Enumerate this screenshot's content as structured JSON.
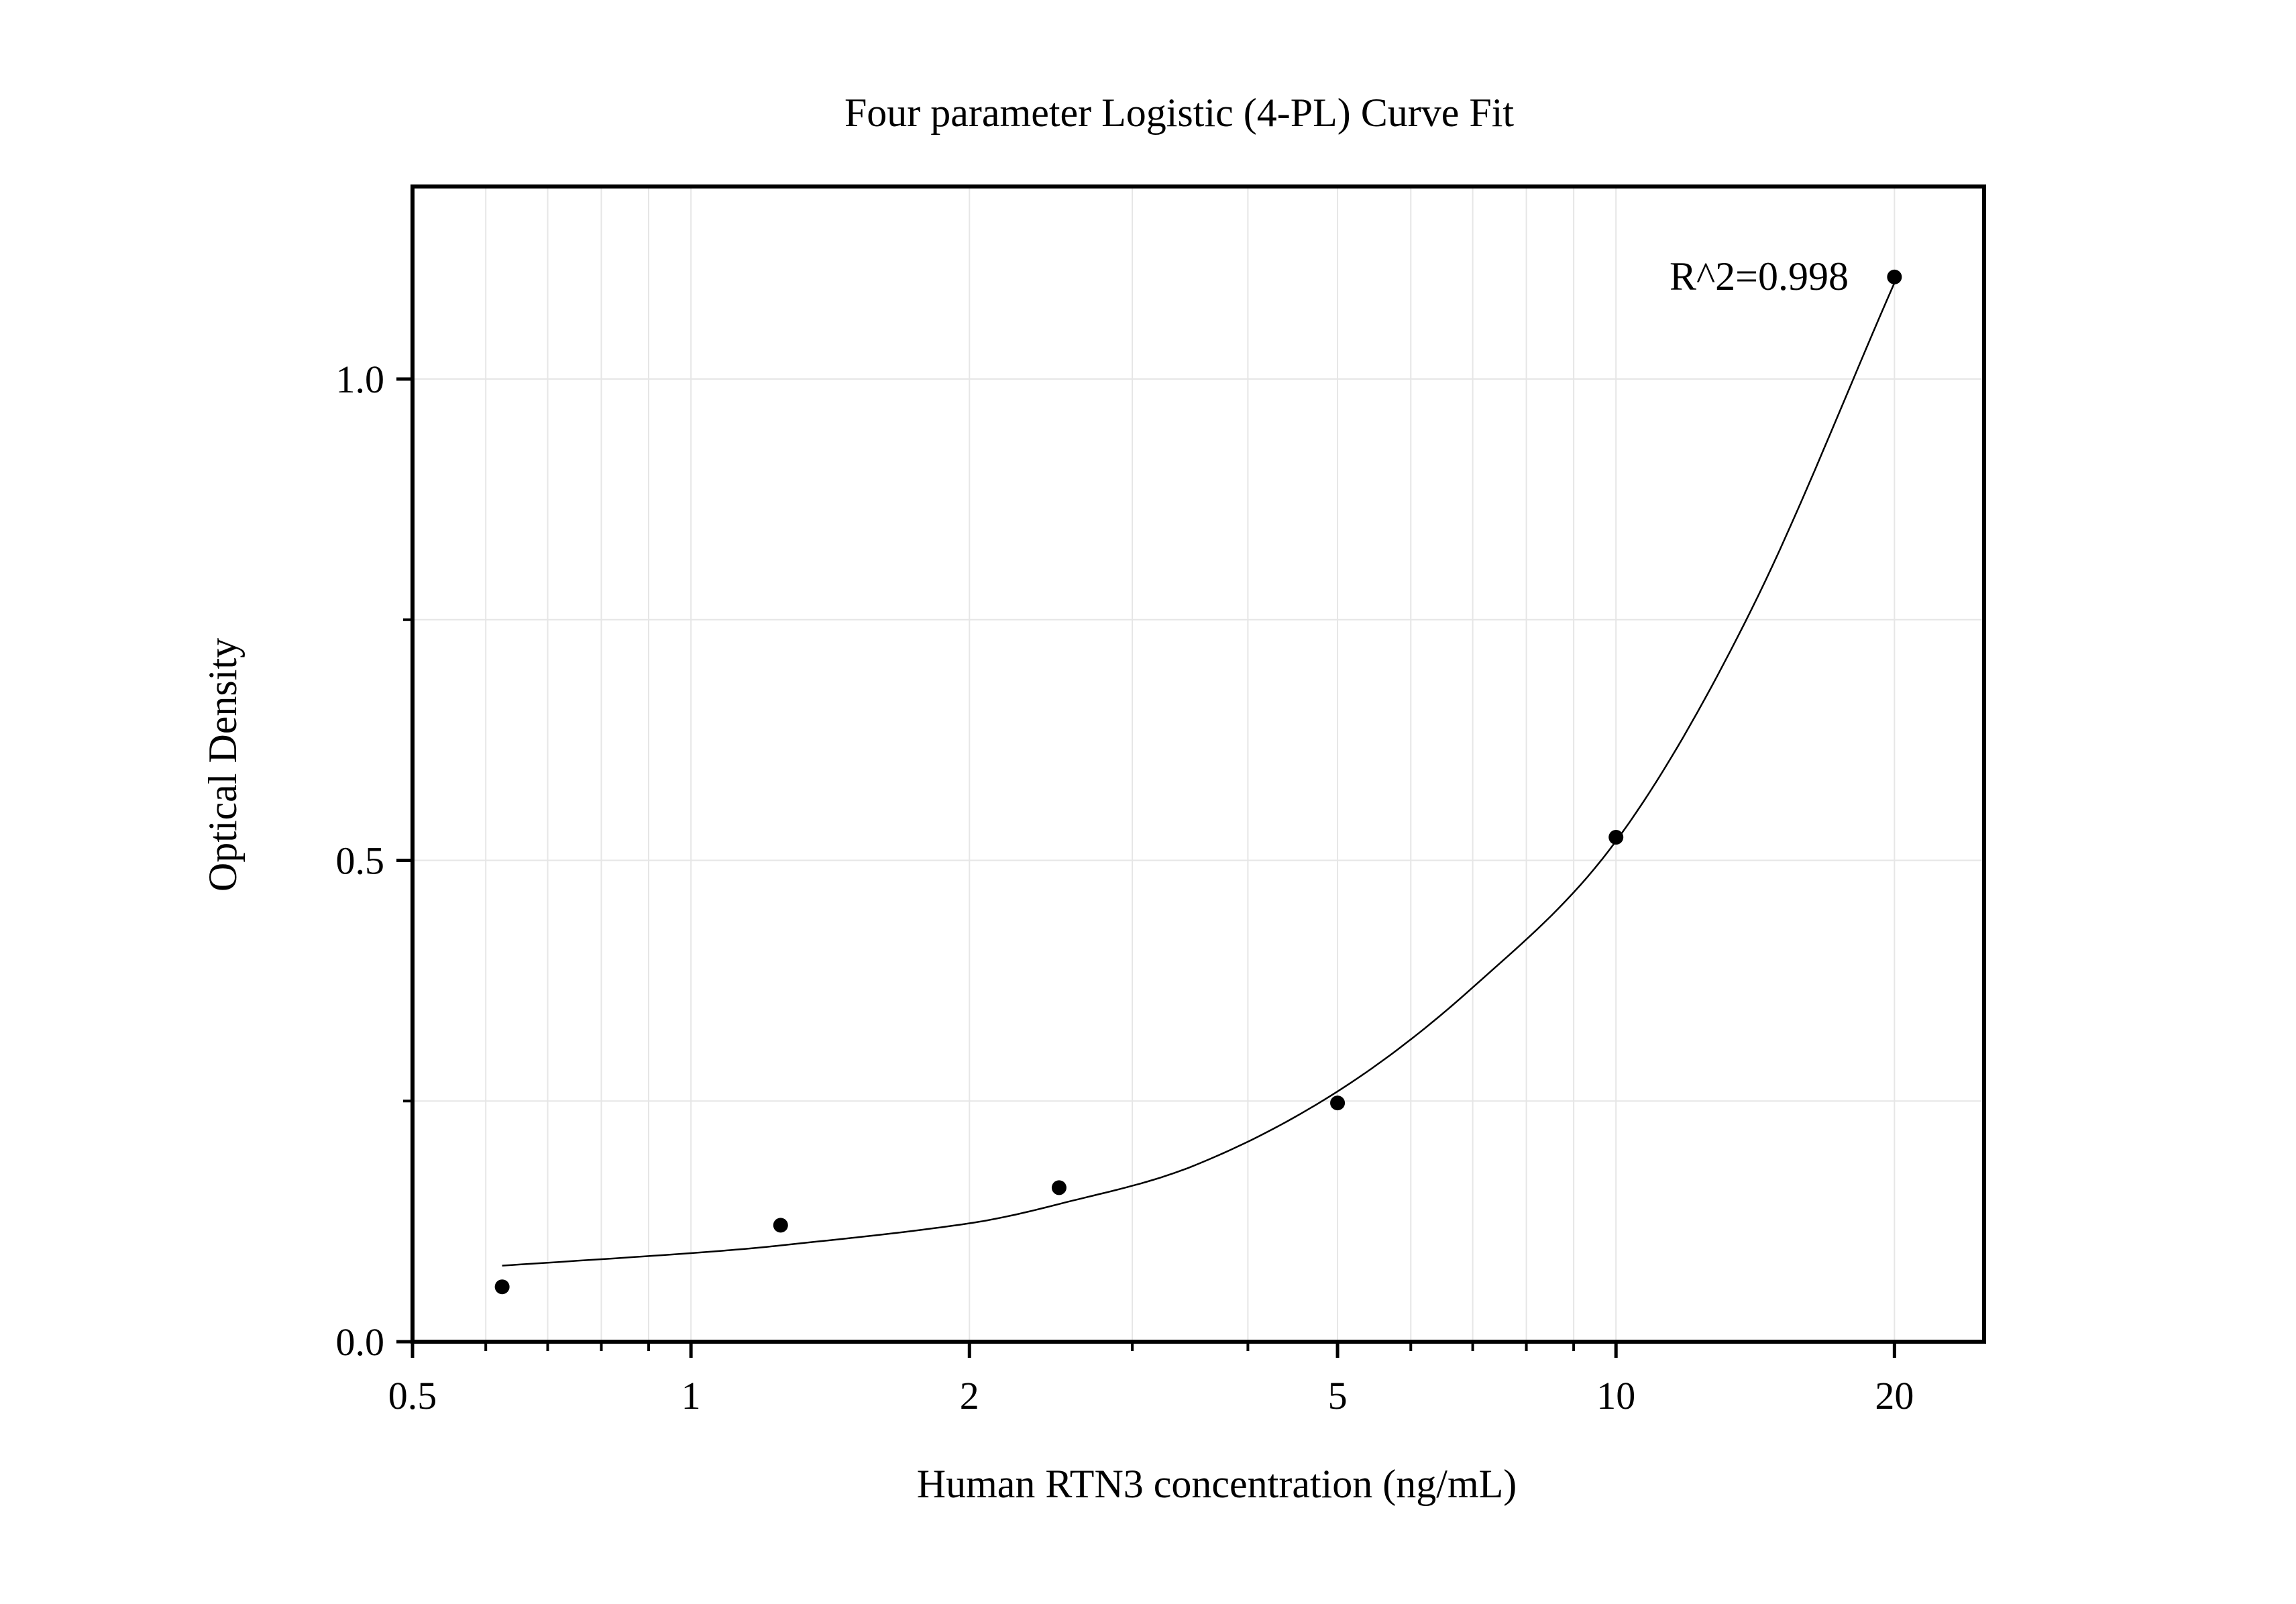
{
  "chart_data": {
    "type": "scatter",
    "title": "Four parameter Logistic (4-PL) Curve Fit",
    "xlabel": "Human RTN3 concentration (ng/mL)",
    "ylabel": "Optical Density",
    "x_scale": "log",
    "xlim": [
      0.5,
      25
    ],
    "ylim": [
      0.0,
      1.2
    ],
    "x_ticks": [
      0.5,
      1,
      2,
      5,
      10,
      20
    ],
    "x_tick_labels": [
      "0.5",
      "1",
      "2",
      "5",
      "10",
      "20"
    ],
    "y_ticks": [
      0.0,
      0.5,
      1.0
    ],
    "y_tick_labels": [
      "0.0",
      "0.5",
      "1.0"
    ],
    "y_minor_ticks": [
      0.25,
      0.75
    ],
    "grid": true,
    "legend": "none",
    "annotation": "R^2=0.998",
    "series": [
      {
        "points": [
          {
            "x": 0.625,
            "y": 0.057
          },
          {
            "x": 1.25,
            "y": 0.121
          },
          {
            "x": 2.5,
            "y": 0.16
          },
          {
            "x": 5,
            "y": 0.248
          },
          {
            "x": 10,
            "y": 0.524
          },
          {
            "x": 20,
            "y": 1.106
          }
        ]
      }
    ],
    "fit_curve": {
      "model": "4PL",
      "points": [
        {
          "x": 0.625,
          "y": 0.079
        },
        {
          "x": 1.0,
          "y": 0.092
        },
        {
          "x": 1.25,
          "y": 0.1
        },
        {
          "x": 2.0,
          "y": 0.123
        },
        {
          "x": 2.5,
          "y": 0.143
        },
        {
          "x": 3.5,
          "y": 0.183
        },
        {
          "x": 5.0,
          "y": 0.26
        },
        {
          "x": 7.0,
          "y": 0.368
        },
        {
          "x": 10.0,
          "y": 0.52
        },
        {
          "x": 14.0,
          "y": 0.76
        },
        {
          "x": 20.0,
          "y": 1.1
        }
      ]
    }
  }
}
